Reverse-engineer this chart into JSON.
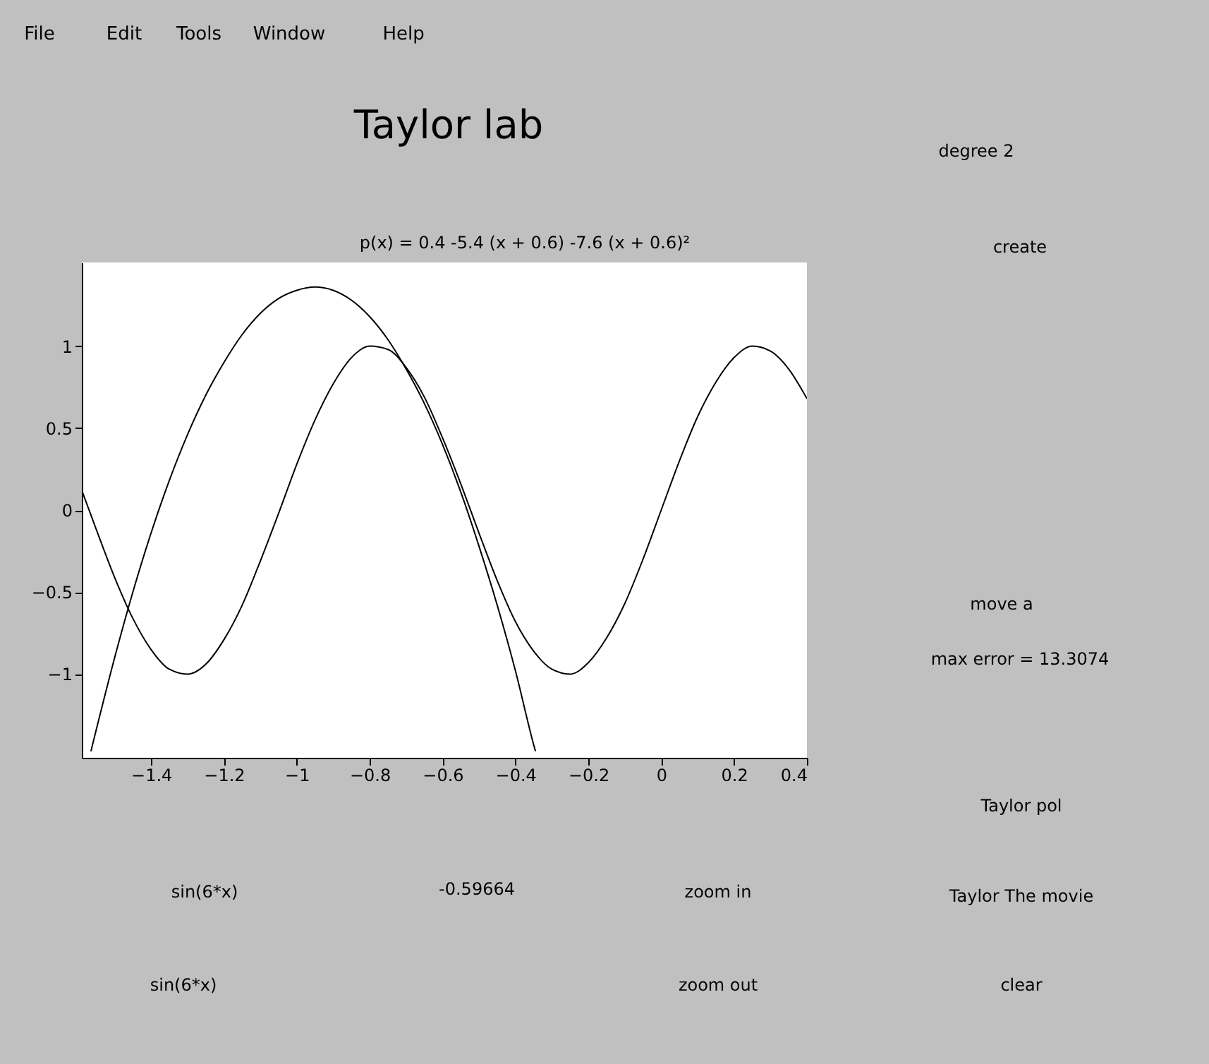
{
  "chart_data": {
    "type": "line",
    "title": "Taylor lab",
    "subtitle": "p(x) = 0.4 -5.4 (x + 0.6) -7.6 (x + 0.6)²",
    "xlim": [
      -1.59,
      0.4
    ],
    "ylim": [
      -1.51,
      1.51
    ],
    "xticks": [
      -1.4,
      -1.2,
      -1,
      -0.8,
      -0.6,
      -0.4,
      -0.2,
      0,
      0.2,
      0.4
    ],
    "yticks": [
      -1,
      -0.5,
      0,
      0.5,
      1
    ],
    "series": [
      {
        "color": "#000000",
        "x": [
          -1.59,
          -1.55,
          -1.5,
          -1.45,
          -1.4,
          -1.35,
          -1.3,
          -1.25,
          -1.2,
          -1.15,
          -1.1,
          -1.05,
          -1.0,
          -0.95,
          -0.9,
          -0.85,
          -0.8,
          -0.75,
          -0.7,
          -0.65,
          -0.6,
          -0.55,
          -0.5,
          -0.45,
          -0.4,
          -0.35,
          -0.3,
          -0.25,
          -0.2,
          -0.15,
          -0.1,
          -0.05,
          0.0,
          0.05,
          0.1,
          0.15,
          0.2,
          0.25,
          0.3,
          0.35,
          0.4
        ],
        "values": [
          0.12,
          -0.12,
          -0.41,
          -0.66,
          -0.85,
          -0.97,
          -1.0,
          -0.94,
          -0.79,
          -0.58,
          -0.31,
          -0.02,
          0.28,
          0.55,
          0.77,
          0.93,
          1.0,
          0.98,
          0.87,
          0.69,
          0.44,
          0.16,
          -0.14,
          -0.43,
          -0.68,
          -0.86,
          -0.97,
          -1.0,
          -0.93,
          -0.78,
          -0.57,
          -0.3,
          0.0,
          0.3,
          0.57,
          0.78,
          0.93,
          1.0,
          0.97,
          0.86,
          0.68
        ]
      },
      {
        "color": "#000000",
        "x": [
          -1.565,
          -1.5,
          -1.45,
          -1.4,
          -1.35,
          -1.3,
          -1.25,
          -1.2,
          -1.15,
          -1.1,
          -1.05,
          -1.0,
          -0.95,
          -0.9,
          -0.85,
          -0.8,
          -0.75,
          -0.7,
          -0.65,
          -0.6,
          -0.55,
          -0.5,
          -0.45,
          -0.4,
          -0.35,
          -0.345
        ],
        "values": [
          -1.47,
          -0.9,
          -0.5,
          -0.14,
          0.18,
          0.46,
          0.7,
          0.9,
          1.07,
          1.2,
          1.29,
          1.34,
          1.36,
          1.34,
          1.28,
          1.18,
          1.04,
          0.86,
          0.65,
          0.4,
          0.11,
          -0.22,
          -0.58,
          -0.98,
          -1.43,
          -1.47
        ]
      }
    ],
    "annotations": [
      "File",
      "Edit",
      "Tools",
      "Window",
      "Help",
      "degree 2",
      "create",
      "move a",
      "max error = 13.3074",
      "Taylor pol",
      "Taylor The movie",
      "clear",
      "sin(6*x)",
      "-0.59664",
      "zoom in",
      "sin(6*x)",
      "zoom out"
    ]
  }
}
